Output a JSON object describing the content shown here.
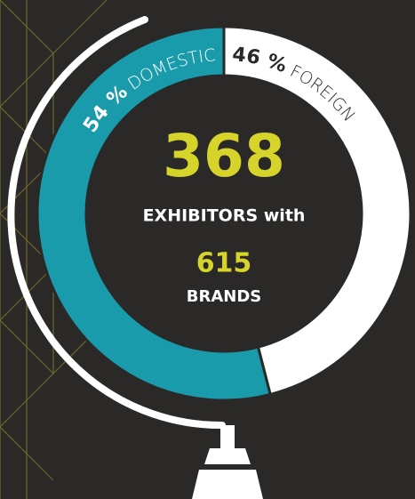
{
  "chart_data": {
    "type": "pie",
    "categories": [
      "DOMESTIC",
      "FOREIGN"
    ],
    "values": [
      54,
      46
    ],
    "value_labels": [
      "54 %",
      "46 %"
    ],
    "colors": [
      "#1a9bab",
      "#ffffff"
    ],
    "label_colors": [
      "#ffffff",
      "#2b2828"
    ],
    "annotations": [
      368,
      "EXHIBITORS with",
      615,
      "BRANDS"
    ]
  }
}
